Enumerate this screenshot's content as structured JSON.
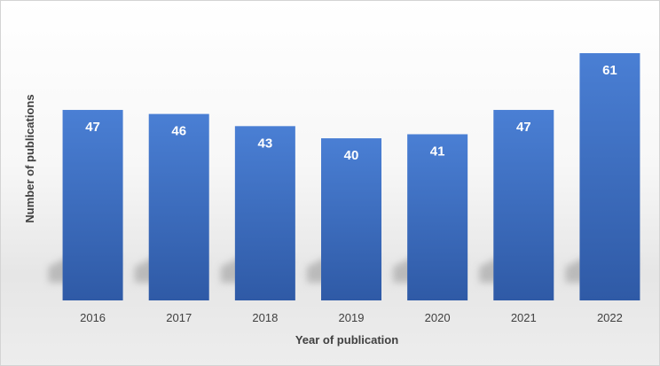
{
  "chart_data": {
    "type": "bar",
    "categories": [
      "2016",
      "2017",
      "2018",
      "2019",
      "2020",
      "2021",
      "2022"
    ],
    "values": [
      47,
      46,
      43,
      40,
      41,
      47,
      61
    ],
    "xlabel": "Year of publication",
    "ylabel": "Number of publications",
    "ylim": [
      0,
      61
    ],
    "grid": false,
    "legend": "none",
    "data_labels": true,
    "colors": {
      "bar_top": "#4a7fd4",
      "bar_bottom": "#2f5aa6",
      "shadow": "#b3b3b3"
    }
  }
}
